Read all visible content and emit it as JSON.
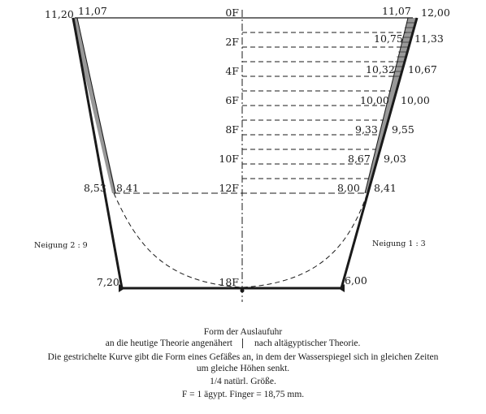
{
  "diagram": {
    "center_levels": [
      "0F",
      "2F",
      "4F",
      "6F",
      "8F",
      "10F",
      "12F",
      "18F"
    ],
    "left_top_outer": "11,20",
    "left_top_inner": "11,07",
    "right_top_inner": "11,07",
    "right_top_outer": "12,00",
    "left_mid_outer": "8,53",
    "left_mid_inner": "8,41",
    "left_bottom": "7,20",
    "right_bottom": "6,00",
    "right_inner_values": [
      "10,75",
      "10,32",
      "10,00",
      "9,33",
      "8,67",
      "8,00"
    ],
    "right_outer_values": [
      "11,33",
      "10,67",
      "10,00",
      "9,55",
      "9,03",
      "8,41"
    ],
    "left_slope_label": "Neigung 2 : 9",
    "right_slope_label": "Neigung 1 : 3"
  },
  "caption": {
    "title": "Form der Auslaufuhr",
    "left_sub": "an die heutige Theorie angenähert",
    "right_sub": "nach altägyptischer Theorie.",
    "note_line1": "Die gestrichelte Kurve gibt die Form eines Gefäßes an, in dem der Wasserspiegel sich in gleichen Zeiten",
    "note_line2": "um gleiche Höhen senkt.",
    "scale": "1/4 natürl. Größe.",
    "unit": "F = 1 ägypt. Finger = 18,75 mm."
  }
}
